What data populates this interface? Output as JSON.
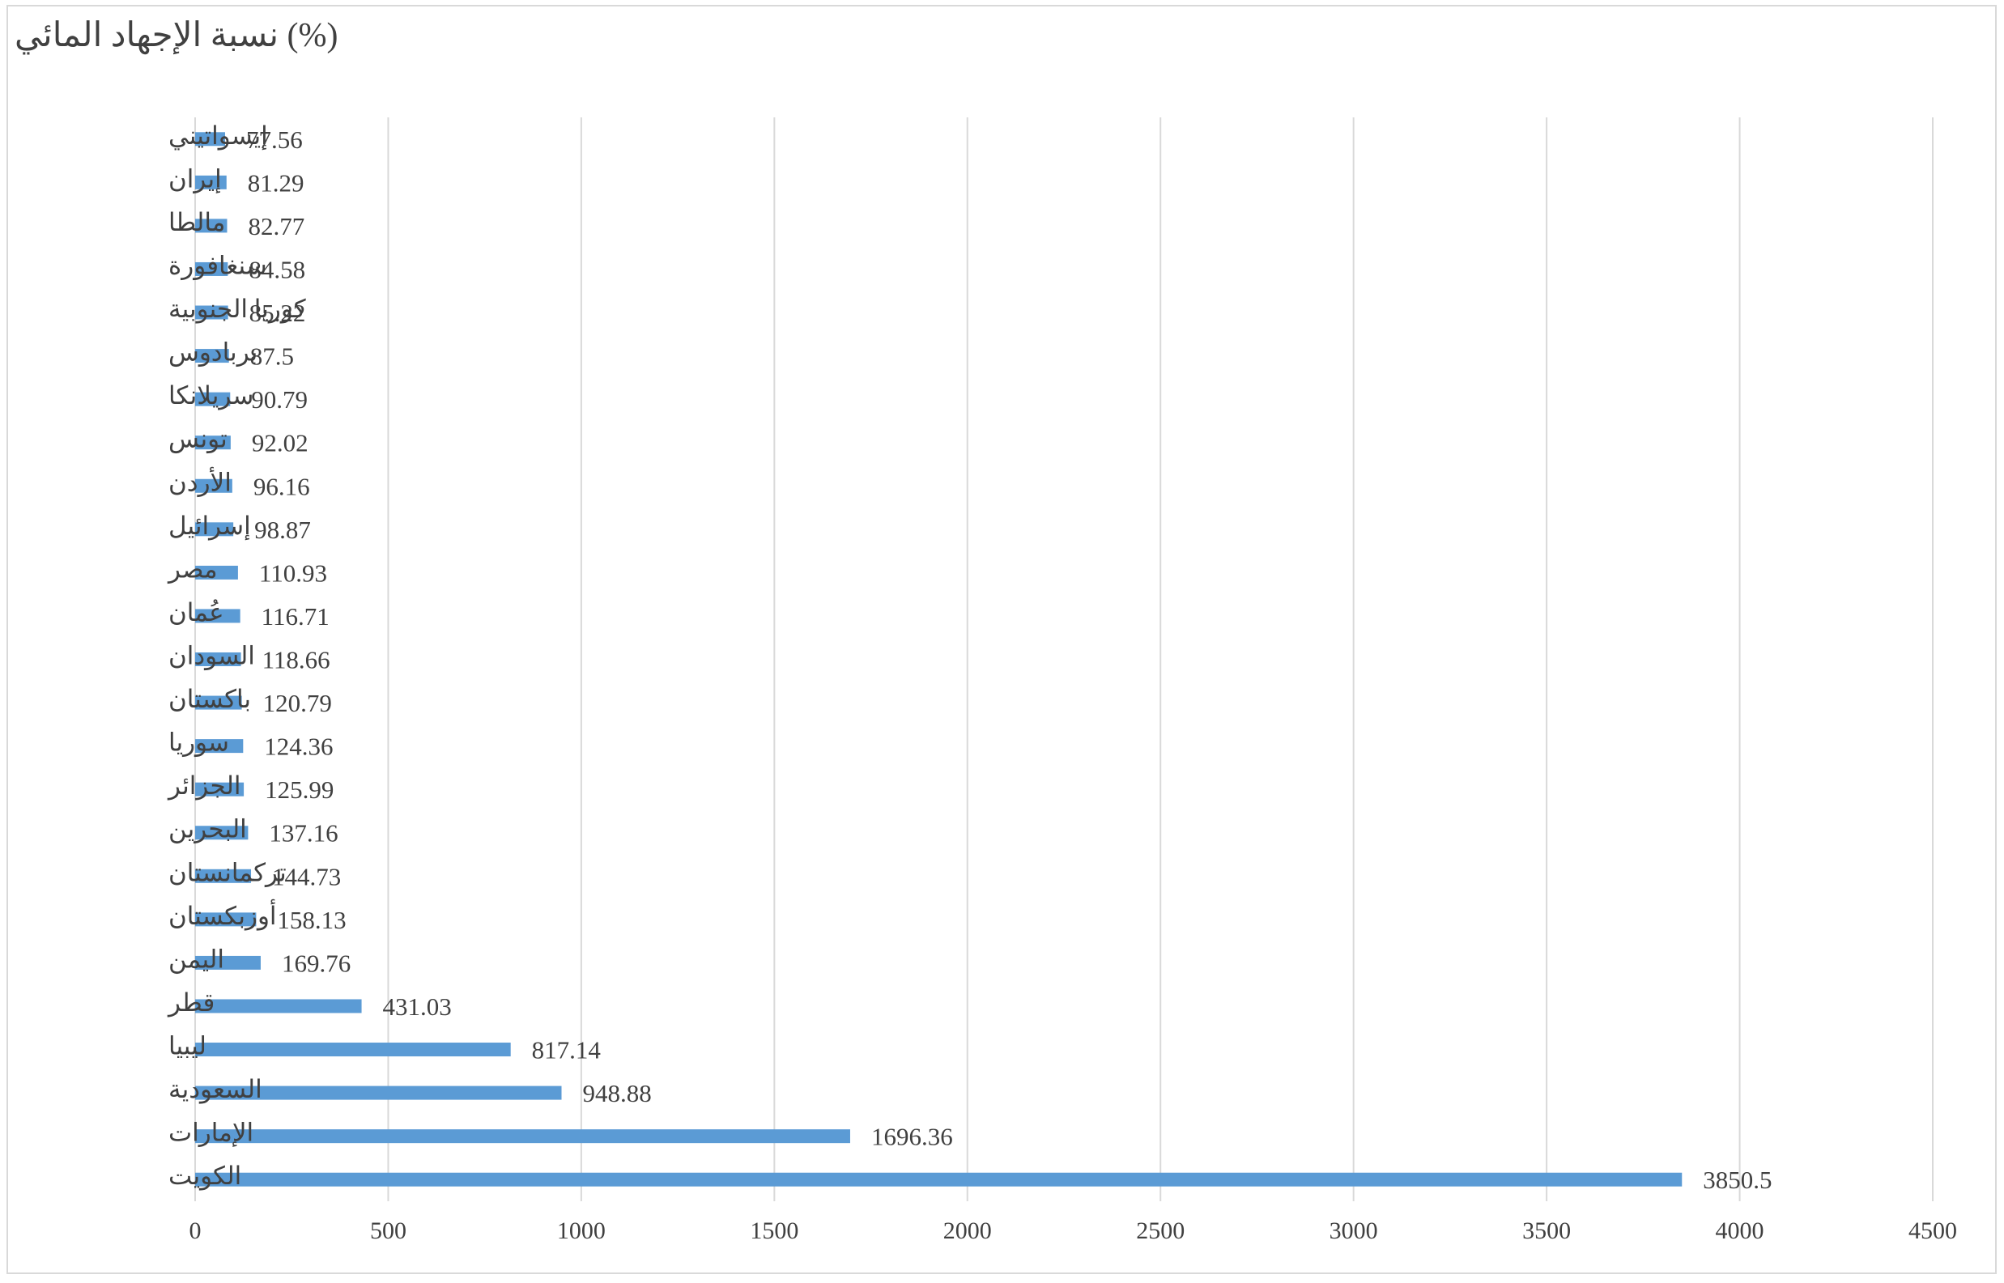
{
  "chart_data": {
    "type": "bar",
    "orientation": "horizontal",
    "title": "نسبة الإجهاد المائي (%)",
    "xlabel": "",
    "ylabel": "",
    "xlim": [
      0,
      4500
    ],
    "xticks": [
      0,
      500,
      1000,
      1500,
      2000,
      2500,
      3000,
      3500,
      4000,
      4500
    ],
    "grid": true,
    "legend": "none",
    "bar_color": "#5b9bd5",
    "categories": [
      "إيسواتيني",
      "إيران",
      "مالطا",
      "سنغافورة",
      "كوريا الجنوبية",
      "بربادوس",
      "سريلانكا",
      "تونس",
      "الأردن",
      "إسرائيل",
      "مصر",
      "عُمان",
      "السودان",
      "باكستان",
      "سوريا",
      "الجزائر",
      "البحرين",
      "تركمانستان",
      "أوزبكستان",
      "اليمن",
      "قطر",
      "ليبيا",
      "السعودية",
      "الإمارات",
      "الكويت"
    ],
    "values": [
      77.56,
      81.29,
      82.77,
      84.58,
      85.22,
      87.5,
      90.79,
      92.02,
      96.16,
      98.87,
      110.93,
      116.71,
      118.66,
      120.79,
      124.36,
      125.99,
      137.16,
      144.73,
      158.13,
      169.76,
      431.03,
      817.14,
      948.88,
      1696.36,
      3850.5
    ],
    "data_labels": [
      "77.56",
      "81.29",
      "82.77",
      "84.58",
      "85.22",
      "87.5",
      "90.79",
      "92.02",
      "96.16",
      "98.87",
      "110.93",
      "116.71",
      "118.66",
      "120.79",
      "124.36",
      "125.99",
      "137.16",
      "144.73",
      "158.13",
      "169.76",
      "431.03",
      "817.14",
      "948.88",
      "1696.36",
      "3850.5"
    ]
  }
}
